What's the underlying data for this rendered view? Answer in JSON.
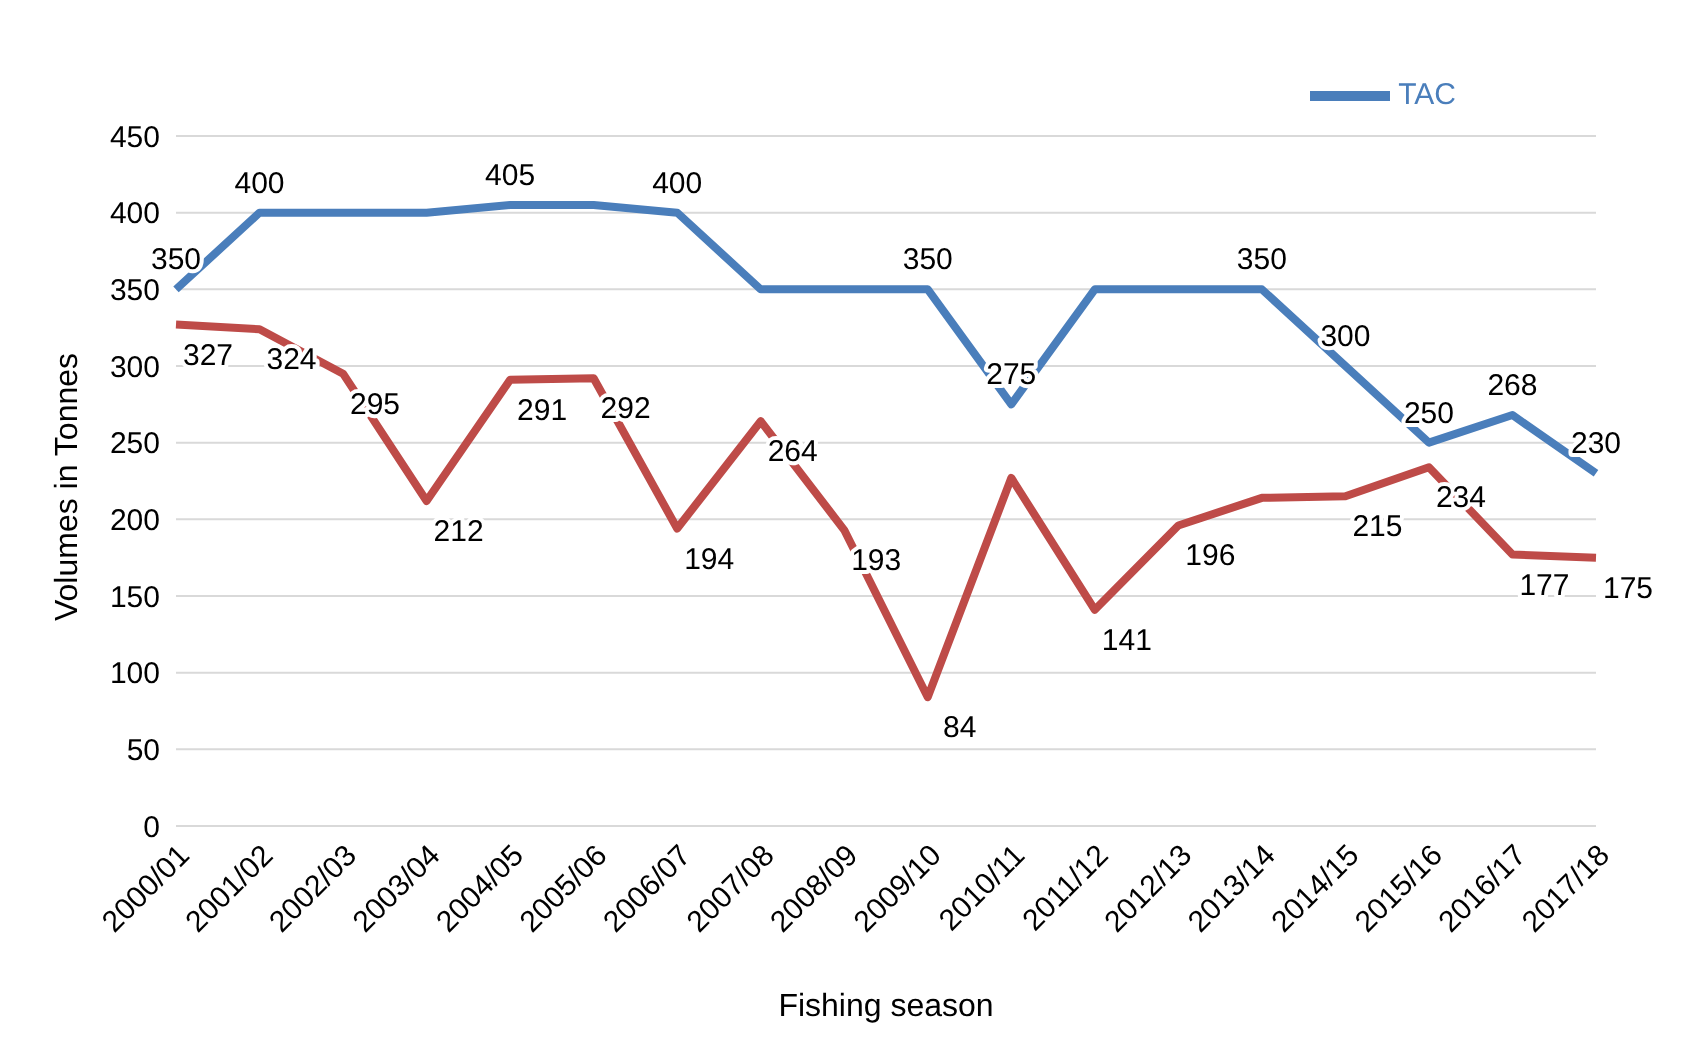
{
  "chart_data": {
    "type": "line",
    "xlabel": "Fishing season",
    "ylabel": "Volumes in Tonnes",
    "categories": [
      "2000/01",
      "2001/02",
      "2002/03",
      "2003/04",
      "2004/05",
      "2005/06",
      "2006/07",
      "2007/08",
      "2008/09",
      "2009/10",
      "2010/11",
      "2011/12",
      "2012/13",
      "2013/14",
      "2014/15",
      "2015/16",
      "2016/17",
      "2017/18"
    ],
    "series": [
      {
        "name": "TAC",
        "color": "#4a7ebb",
        "values": [
          350,
          400,
          400,
          400,
          405,
          405,
          400,
          350,
          350,
          350,
          275,
          350,
          350,
          350,
          300,
          250,
          268,
          230
        ],
        "value_labels": [
          "350",
          "400",
          null,
          null,
          "405",
          null,
          "400",
          null,
          null,
          "350",
          "275",
          null,
          null,
          "350",
          "300",
          "250",
          "268",
          "230"
        ]
      },
      {
        "color": "#be4b48",
        "values": [
          327,
          324,
          295,
          212,
          291,
          292,
          194,
          264,
          193,
          84,
          227,
          141,
          196,
          214,
          215,
          234,
          177,
          175
        ],
        "value_labels": [
          "327",
          "324",
          "295",
          "212",
          "291",
          "292",
          "194",
          "264",
          "193",
          "84",
          null,
          "141",
          "196",
          null,
          "215",
          "234",
          "177",
          "175"
        ]
      }
    ],
    "ylim": [
      0,
      450
    ],
    "yticks": [
      0,
      50,
      100,
      150,
      200,
      250,
      300,
      350,
      400,
      450
    ],
    "grid": "y",
    "legend": "top right",
    "marker": "none",
    "line_style": "solid"
  }
}
